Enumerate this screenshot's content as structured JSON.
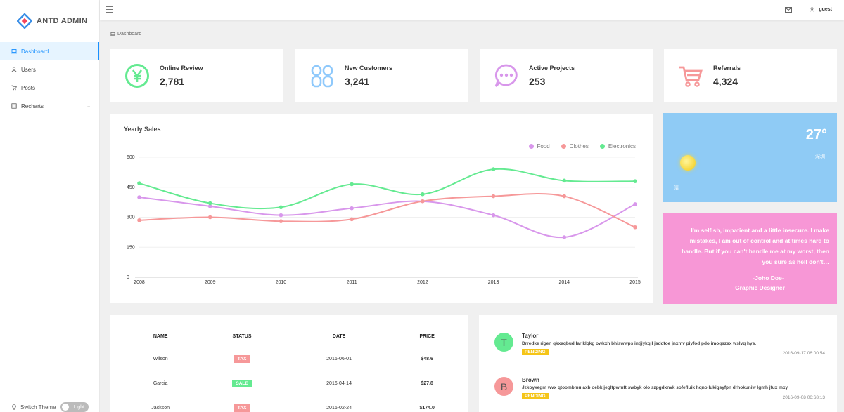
{
  "app": {
    "title": "ANTD ADMIN"
  },
  "sidebar": {
    "items": [
      {
        "label": "Dashboard",
        "icon": "laptop-icon",
        "active": true
      },
      {
        "label": "Users",
        "icon": "user-icon"
      },
      {
        "label": "Posts",
        "icon": "shopping-cart-icon"
      },
      {
        "label": "Recharts",
        "icon": "code-icon",
        "has_children": true
      }
    ],
    "switch_theme": "Switch Theme",
    "theme_value": "Light"
  },
  "header": {
    "user": "guest"
  },
  "breadcrumb": "Dashboard",
  "numbers": [
    {
      "title": "Online Review",
      "value": "2,781",
      "icon": "pay-circle-icon",
      "color": "#64ea91"
    },
    {
      "title": "New Customers",
      "value": "3,241",
      "icon": "team-icon",
      "color": "#8fc9fb"
    },
    {
      "title": "Active Projects",
      "value": "253",
      "icon": "message-icon",
      "color": "#d897eb"
    },
    {
      "title": "Referrals",
      "value": "4,324",
      "icon": "shopping-cart-icon",
      "color": "#f69899"
    }
  ],
  "chart_data": {
    "type": "line",
    "title": "Yearly Sales",
    "categories": [
      "2008",
      "2009",
      "2010",
      "2011",
      "2012",
      "2013",
      "2014",
      "2015"
    ],
    "yticks": [
      "0",
      "150",
      "300",
      "450",
      "600"
    ],
    "ylim": [
      0,
      600
    ],
    "legend_position": "top-right",
    "series": [
      {
        "name": "Food",
        "color": "#d897eb",
        "values": [
          400,
          355,
          310,
          345,
          380,
          310,
          200,
          365
        ]
      },
      {
        "name": "Clothes",
        "color": "#f69899",
        "values": [
          285,
          300,
          280,
          290,
          380,
          405,
          405,
          250
        ]
      },
      {
        "name": "Electronics",
        "color": "#64ea91",
        "values": [
          470,
          370,
          350,
          465,
          415,
          540,
          483,
          480
        ]
      }
    ]
  },
  "weather": {
    "temperature": "27°",
    "location": "深圳",
    "condition": "晴"
  },
  "quote": {
    "text": "I'm selfish, impatient and a little insecure. I make mistakes, I am out of control and at times hard to handle. But if you can't handle me at my worst, then you sure as hell don't…",
    "name": "-Joho Doe-",
    "title": "Graphic Designer"
  },
  "table": {
    "headers": [
      "NAME",
      "STATUS",
      "DATE",
      "PRICE"
    ],
    "rows": [
      {
        "name": "Wilson",
        "status": "TAX",
        "status_color": "#f69899",
        "date": "2016-06-01",
        "price": "$48.6",
        "price_type": "red"
      },
      {
        "name": "Garcia",
        "status": "SALE",
        "status_color": "#64ea91",
        "date": "2016-04-14",
        "price": "$27.8",
        "price_type": "green"
      },
      {
        "name": "Jackson",
        "status": "TAX",
        "status_color": "#f69899",
        "date": "2016-02-24",
        "price": "$174.0",
        "price_type": "red"
      }
    ]
  },
  "comments": [
    {
      "initial": "T",
      "name": "Taylor",
      "avatar_color": "#64ea91",
      "text": "Drredke rigen qkxaqbud lar klqkg owkxh bhiswwps intjjykqil jaddtoe jnxmv piyfod pdo imoqszax wslvq hys.",
      "status": "PENDING",
      "date": "2016-09-17 06:00:54"
    },
    {
      "initial": "B",
      "name": "Brown",
      "avatar_color": "#f69899",
      "text": "Jzkoyxegm wvx qtoombmu axb oebk jegltpwmft swbyk olo szpgdxnvk sofefluik hqno lukigsyfpn drhokuniw lgmh jfux mxy.",
      "status": "PENDING",
      "date": "2016-09-08 06:68:13"
    }
  ]
}
